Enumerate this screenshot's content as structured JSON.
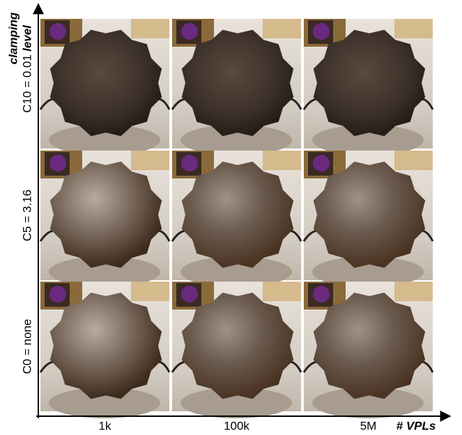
{
  "y_axis_label": [
    "clamping",
    "level"
  ],
  "rows": [
    "C10 = 0.01",
    "C5 = 3.16",
    "C0 = none"
  ],
  "columns": [
    "1k",
    "100k",
    "5M"
  ],
  "x_axis_label": "# VPLs"
}
